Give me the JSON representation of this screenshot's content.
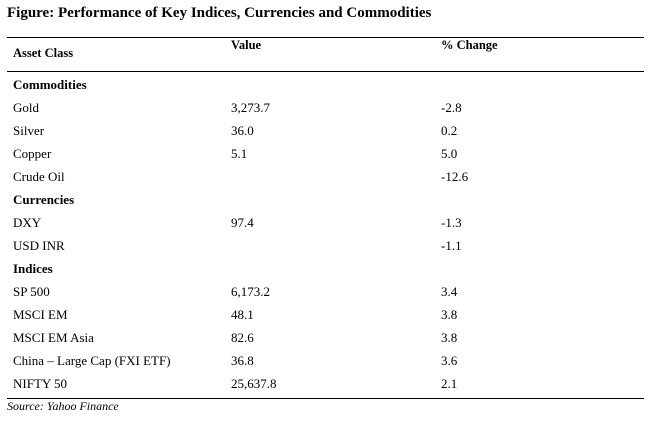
{
  "title": "Figure: Performance of Key Indices, Currencies and Commodities",
  "headers": {
    "asset_class": "Asset Class",
    "value": "Value",
    "change": "% Change"
  },
  "sections": [
    {
      "name": "Commodities",
      "rows": [
        {
          "asset": "Gold",
          "value": "3,273.7",
          "change": "-2.8"
        },
        {
          "asset": "Silver",
          "value": "36.0",
          "change": "0.2"
        },
        {
          "asset": "Copper",
          "value": "5.1",
          "change": "5.0"
        },
        {
          "asset": "Crude Oil",
          "value": "",
          "change": "-12.6"
        }
      ]
    },
    {
      "name": "Currencies",
      "rows": [
        {
          "asset": "DXY",
          "value": "97.4",
          "change": "-1.3"
        },
        {
          "asset": "USD INR",
          "value": "",
          "change": "-1.1"
        }
      ]
    },
    {
      "name": "Indices",
      "rows": [
        {
          "asset": "SP 500",
          "value": "6,173.2",
          "change": "3.4"
        },
        {
          "asset": "MSCI EM",
          "value": "48.1",
          "change": "3.8"
        },
        {
          "asset": "MSCI EM Asia",
          "value": "82.6",
          "change": "3.8"
        },
        {
          "asset": "China – Large Cap (FXI ETF)",
          "value": "36.8",
          "change": "3.6"
        },
        {
          "asset": "NIFTY 50",
          "value": "25,637.8",
          "change": "2.1"
        }
      ]
    }
  ],
  "source": "Source: Yahoo Finance"
}
